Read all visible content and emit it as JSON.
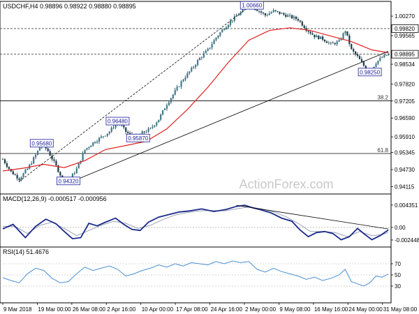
{
  "header": {
    "symbol_line": "USDCHF,H4  0.98896 0.98922 0.98880 0.98895"
  },
  "watermark": "ActionForex.com",
  "colors": {
    "bull_candle": "#3d7a8c",
    "bear_candle": "#1b3b48",
    "ma_line": "#e02020",
    "trend_line": "#000000",
    "macd_line": "#1a2a8a",
    "signal_line": "#9aa0b4",
    "rsi_line": "#4a8fd0",
    "price_box": "#1a1a99"
  },
  "chart_data": [
    {
      "type": "candlestick",
      "title": "USDCHF,H4",
      "ohlc_readout": [
        0.98896,
        0.98922,
        0.9888,
        0.98895
      ],
      "ylim": [
        0.9405,
        1.006
      ],
      "y_ticks": [
        "1.00270",
        "0.99565",
        "0.98895",
        "0.98534",
        "0.97820",
        "0.97205",
        "0.96590",
        "0.95910",
        "0.95345",
        "0.94730",
        "0.94115"
      ],
      "x_ticks": [
        "9 Mar 2018",
        "19 Mar 00:00",
        "26 Mar 08:00",
        "2 Apr 16:00",
        "10 Apr 00:00",
        "17 Apr 08:00",
        "24 Apr 16:00",
        "2 May 00:00",
        "9 May 08:00",
        "16 May 16:00",
        "24 May 00:00",
        "31 May 08:00"
      ],
      "price_path": [
        [
          0,
          0.951
        ],
        [
          8,
          0.9465
        ],
        [
          16,
          0.944
        ],
        [
          24,
          0.9475
        ],
        [
          32,
          0.9525
        ],
        [
          38,
          0.9568
        ],
        [
          44,
          0.954
        ],
        [
          52,
          0.9485
        ],
        [
          58,
          0.944
        ],
        [
          64,
          0.9432
        ],
        [
          72,
          0.9475
        ],
        [
          80,
          0.9545
        ],
        [
          88,
          0.957
        ],
        [
          96,
          0.959
        ],
        [
          104,
          0.961
        ],
        [
          112,
          0.9648
        ],
        [
          120,
          0.961
        ],
        [
          128,
          0.9587
        ],
        [
          136,
          0.9605
        ],
        [
          144,
          0.962
        ],
        [
          152,
          0.9655
        ],
        [
          160,
          0.971
        ],
        [
          168,
          0.9755
        ],
        [
          176,
          0.98
        ],
        [
          184,
          0.9835
        ],
        [
          192,
          0.9875
        ],
        [
          200,
          0.9905
        ],
        [
          208,
          0.995
        ],
        [
          216,
          0.9985
        ],
        [
          224,
          1.0015
        ],
        [
          232,
          1.004
        ],
        [
          240,
          1.0066
        ],
        [
          248,
          1.005
        ],
        [
          256,
          1.003
        ],
        [
          264,
          1.0045
        ],
        [
          272,
          1.0035
        ],
        [
          280,
          1.0025
        ],
        [
          288,
          1.0015
        ],
        [
          296,
          0.998
        ],
        [
          304,
          0.9955
        ],
        [
          312,
          0.9945
        ],
        [
          320,
          0.9925
        ],
        [
          328,
          0.9935
        ],
        [
          334,
          0.9975
        ],
        [
          340,
          0.9905
        ],
        [
          346,
          0.988
        ],
        [
          352,
          0.9848
        ],
        [
          358,
          0.9825
        ],
        [
          364,
          0.986
        ],
        [
          370,
          0.9878
        ],
        [
          376,
          0.98895
        ]
      ],
      "ma_path": [
        [
          0,
          0.9468
        ],
        [
          20,
          0.9478
        ],
        [
          40,
          0.9492
        ],
        [
          60,
          0.948
        ],
        [
          80,
          0.9505
        ],
        [
          100,
          0.9545
        ],
        [
          120,
          0.956
        ],
        [
          140,
          0.9575
        ],
        [
          160,
          0.962
        ],
        [
          180,
          0.969
        ],
        [
          200,
          0.977
        ],
        [
          220,
          0.986
        ],
        [
          240,
          0.994
        ],
        [
          260,
          0.9975
        ],
        [
          280,
          0.9985
        ],
        [
          300,
          0.9975
        ],
        [
          320,
          0.9955
        ],
        [
          340,
          0.9935
        ],
        [
          360,
          0.9905
        ],
        [
          376,
          0.9895
        ]
      ],
      "trend_lines": [
        {
          "from": [
            16,
            0.943
          ],
          "to": [
            242,
            1.0066
          ]
        },
        {
          "from": [
            74,
            0.944
          ],
          "to": [
            376,
            0.99
          ]
        }
      ],
      "levels": [
        {
          "value": 0.9982,
          "label": ""
        },
        {
          "value": 0.98895,
          "label": ""
        },
        {
          "value": 0.9721,
          "label": "38.2"
        },
        {
          "value": 0.9531,
          "label": "61.8"
        }
      ],
      "price_labels": [
        {
          "x": 243,
          "y": 1.0066,
          "text": "1.00660"
        },
        {
          "x": 38,
          "y": 0.9568,
          "text": "0.95680"
        },
        {
          "x": 64,
          "y": 0.9432,
          "text": "0.94320"
        },
        {
          "x": 112,
          "y": 0.9648,
          "text": "0.96480"
        },
        {
          "x": 132,
          "y": 0.9587,
          "text": "0.95870"
        },
        {
          "x": 358,
          "y": 0.9825,
          "text": "0.98250"
        }
      ],
      "axis_value_boxes": [
        {
          "y": 0.9982,
          "text": "0.99820"
        },
        {
          "y": 0.98895,
          "text": "0.98895"
        }
      ]
    },
    {
      "type": "line",
      "title": "MACD(12,26,9) -0.000517 -0.000956",
      "ylim": [
        -0.003,
        0.0046
      ],
      "y_ticks": [
        "0.004351",
        "0.00",
        "-0.002448"
      ],
      "series": [
        {
          "values": [
            [
              0,
              -0.0003
            ],
            [
              10,
              0.0006
            ],
            [
              22,
              -0.002
            ],
            [
              32,
              0.0002
            ],
            [
              42,
              0.0016
            ],
            [
              52,
              0.0007
            ],
            [
              60,
              -0.0008
            ],
            [
              68,
              -0.0022
            ],
            [
              76,
              -0.002
            ],
            [
              84,
              0.0008
            ],
            [
              92,
              0.0003
            ],
            [
              100,
              0.001
            ],
            [
              110,
              0.0018
            ],
            [
              118,
              0.0006
            ],
            [
              126,
              -0.0004
            ],
            [
              134,
              -0.0006
            ],
            [
              142,
              0.001
            ],
            [
              152,
              0.002
            ],
            [
              162,
              0.0025
            ],
            [
              172,
              0.003
            ],
            [
              182,
              0.0032
            ],
            [
              194,
              0.0036
            ],
            [
              206,
              0.0031
            ],
            [
              218,
              0.0035
            ],
            [
              228,
              0.0041
            ],
            [
              236,
              0.0043
            ],
            [
              244,
              0.0038
            ],
            [
              252,
              0.0034
            ],
            [
              262,
              0.0028
            ],
            [
              272,
              0.0018
            ],
            [
              282,
              0.0012
            ],
            [
              290,
              -0.0005
            ],
            [
              298,
              -0.0018
            ],
            [
              306,
              -0.001
            ],
            [
              314,
              -0.0008
            ],
            [
              322,
              -0.0012
            ],
            [
              330,
              -0.0024
            ],
            [
              338,
              -0.0018
            ],
            [
              346,
              -0.0002
            ],
            [
              352,
              -0.0012
            ],
            [
              360,
              -0.0024
            ],
            [
              368,
              -0.0016
            ],
            [
              376,
              -0.0005
            ]
          ]
        },
        {
          "values": [
            [
              0,
              0.0002
            ],
            [
              12,
              0.0002
            ],
            [
              24,
              -0.0012
            ],
            [
              36,
              0.0004
            ],
            [
              48,
              0.001
            ],
            [
              60,
              -0.0002
            ],
            [
              72,
              -0.0016
            ],
            [
              84,
              -0.0006
            ],
            [
              96,
              0.0004
            ],
            [
              108,
              0.0012
            ],
            [
              120,
              0.0008
            ],
            [
              132,
              -0.0002
            ],
            [
              144,
              0.0004
            ],
            [
              156,
              0.0015
            ],
            [
              168,
              0.0024
            ],
            [
              180,
              0.0029
            ],
            [
              192,
              0.0032
            ],
            [
              204,
              0.0033
            ],
            [
              216,
              0.0032
            ],
            [
              228,
              0.0036
            ],
            [
              240,
              0.004
            ],
            [
              252,
              0.0036
            ],
            [
              264,
              0.003
            ],
            [
              276,
              0.0021
            ],
            [
              288,
              0.0008
            ],
            [
              300,
              -0.0008
            ],
            [
              312,
              -0.0008
            ],
            [
              324,
              -0.001
            ],
            [
              336,
              -0.0018
            ],
            [
              348,
              -0.0008
            ],
            [
              360,
              -0.0016
            ],
            [
              370,
              -0.0014
            ],
            [
              376,
              -0.001
            ]
          ]
        }
      ],
      "trend_line": {
        "from": [
          228,
          0.0043
        ],
        "to": [
          376,
          -0.0003
        ]
      }
    },
    {
      "type": "line",
      "title": "RSI(14) 51.4676",
      "ylim": [
        5,
        95
      ],
      "y_ticks": [
        "70",
        "50",
        "30"
      ],
      "levels": [
        70,
        50,
        30
      ],
      "series": [
        {
          "values": [
            [
              0,
              45
            ],
            [
              8,
              40
            ],
            [
              16,
              36
            ],
            [
              24,
              52
            ],
            [
              32,
              62
            ],
            [
              40,
              58
            ],
            [
              48,
              44
            ],
            [
              56,
              36
            ],
            [
              64,
              38
            ],
            [
              72,
              52
            ],
            [
              80,
              64
            ],
            [
              88,
              58
            ],
            [
              96,
              62
            ],
            [
              104,
              66
            ],
            [
              112,
              60
            ],
            [
              120,
              48
            ],
            [
              128,
              52
            ],
            [
              136,
              58
            ],
            [
              144,
              62
            ],
            [
              152,
              68
            ],
            [
              160,
              64
            ],
            [
              168,
              70
            ],
            [
              176,
              66
            ],
            [
              184,
              72
            ],
            [
              192,
              70
            ],
            [
              200,
              68
            ],
            [
              208,
              74
            ],
            [
              216,
              70
            ],
            [
              224,
              75
            ],
            [
              232,
              72
            ],
            [
              240,
              74
            ],
            [
              248,
              60
            ],
            [
              256,
              55
            ],
            [
              264,
              62
            ],
            [
              272,
              56
            ],
            [
              280,
              52
            ],
            [
              288,
              48
            ],
            [
              296,
              42
            ],
            [
              304,
              46
            ],
            [
              312,
              40
            ],
            [
              320,
              44
            ],
            [
              328,
              50
            ],
            [
              334,
              60
            ],
            [
              340,
              38
            ],
            [
              346,
              34
            ],
            [
              352,
              30
            ],
            [
              358,
              36
            ],
            [
              364,
              48
            ],
            [
              370,
              46
            ],
            [
              376,
              51.4676
            ]
          ]
        }
      ]
    }
  ]
}
